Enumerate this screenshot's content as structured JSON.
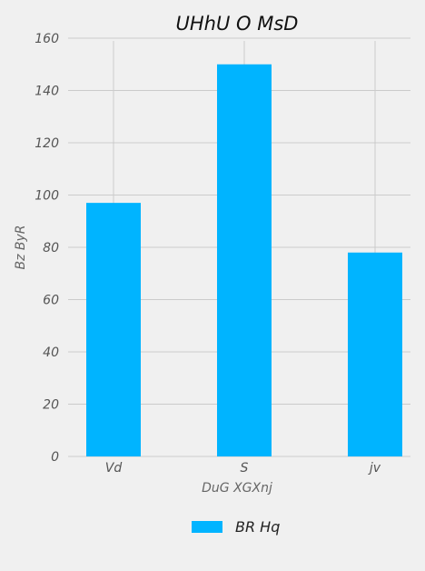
{
  "chart_data": {
    "type": "bar",
    "title": "UHhU O MsD",
    "xlabel": "DuG XGXnj",
    "ylabel": "Bz ByR",
    "categories": [
      "Vd",
      "S",
      "jv"
    ],
    "series": [
      {
        "name": "BR Hq",
        "values": [
          97,
          150,
          78
        ],
        "color": "#00b4ff"
      }
    ],
    "ylim": [
      0,
      160
    ],
    "yticks": [
      0,
      20,
      40,
      60,
      80,
      100,
      120,
      140,
      160
    ],
    "grid": true,
    "legend_position": "bottom-center"
  },
  "colors": {
    "background": "#f0f0f0",
    "grid": "#cbcbcb",
    "bar": "#00b4ff"
  }
}
